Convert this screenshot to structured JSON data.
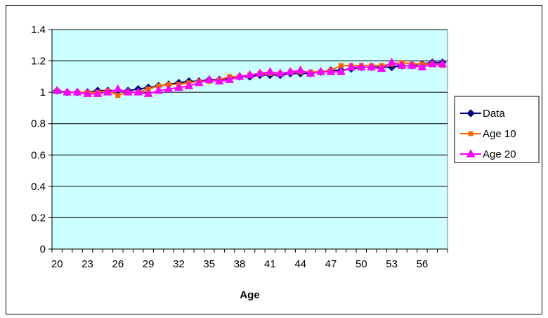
{
  "chart_data": {
    "type": "line",
    "title": "",
    "xlabel": "Age",
    "ylabel": "",
    "ylim": [
      0,
      1.4
    ],
    "yticks": [
      0,
      0.2,
      0.4,
      0.6,
      0.8,
      1,
      1.2,
      1.4
    ],
    "ytick_labels": [
      "0",
      "0.2",
      "0.4",
      "0.6",
      "0.8",
      "1",
      "1.2",
      "1.4"
    ],
    "xlim": [
      20,
      58
    ],
    "xticks": [
      20,
      23,
      26,
      29,
      32,
      35,
      38,
      41,
      44,
      47,
      50,
      53,
      56
    ],
    "xtick_labels": [
      "20",
      "23",
      "26",
      "29",
      "32",
      "35",
      "38",
      "41",
      "44",
      "47",
      "50",
      "53",
      "56"
    ],
    "grid": "horizontal",
    "legend_position": "right",
    "plot_background": "#ccffff",
    "x": [
      20,
      21,
      22,
      23,
      24,
      25,
      26,
      27,
      28,
      29,
      30,
      31,
      32,
      33,
      34,
      35,
      36,
      37,
      38,
      39,
      40,
      41,
      42,
      43,
      44,
      45,
      46,
      47,
      48,
      49,
      50,
      51,
      52,
      53,
      54,
      55,
      56,
      57,
      58
    ],
    "series": [
      {
        "name": "Data",
        "color": "#000080",
        "marker": "diamond",
        "values": [
          1.01,
          1.0,
          1.0,
          1.0,
          1.01,
          1.01,
          1.01,
          1.01,
          1.02,
          1.03,
          1.04,
          1.05,
          1.06,
          1.07,
          1.07,
          1.08,
          1.08,
          1.09,
          1.1,
          1.1,
          1.11,
          1.11,
          1.11,
          1.12,
          1.12,
          1.12,
          1.13,
          1.14,
          1.14,
          1.15,
          1.16,
          1.16,
          1.16,
          1.16,
          1.17,
          1.17,
          1.18,
          1.19,
          1.19
        ]
      },
      {
        "name": "Age 10",
        "color": "#ff6600",
        "marker": "square",
        "values": [
          1.01,
          1.0,
          1.0,
          1.0,
          1.0,
          1.01,
          0.98,
          1.0,
          1.0,
          1.02,
          1.04,
          1.05,
          1.05,
          1.06,
          1.07,
          1.07,
          1.08,
          1.1,
          1.1,
          1.11,
          1.12,
          1.12,
          1.12,
          1.13,
          1.13,
          1.13,
          1.13,
          1.14,
          1.17,
          1.17,
          1.17,
          1.17,
          1.17,
          1.18,
          1.19,
          1.18,
          1.18,
          1.18,
          1.17
        ]
      },
      {
        "name": "Age 20",
        "color": "#ff00ff",
        "marker": "triangle",
        "values": [
          1.01,
          1.0,
          1.0,
          0.99,
          0.99,
          1.0,
          1.02,
          1.0,
          1.0,
          0.99,
          1.01,
          1.02,
          1.03,
          1.04,
          1.06,
          1.08,
          1.07,
          1.08,
          1.1,
          1.11,
          1.12,
          1.13,
          1.12,
          1.13,
          1.14,
          1.12,
          1.13,
          1.13,
          1.13,
          1.16,
          1.16,
          1.16,
          1.15,
          1.19,
          1.17,
          1.17,
          1.16,
          1.18,
          1.18
        ]
      }
    ]
  }
}
